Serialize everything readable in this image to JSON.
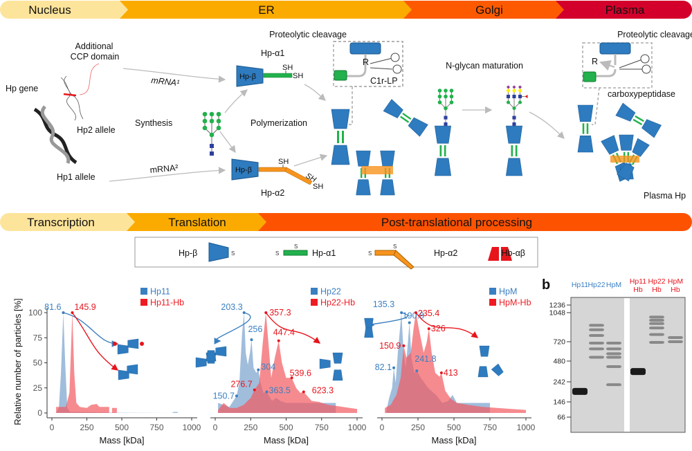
{
  "top_stages": [
    {
      "label": "Nucleus",
      "color": "#fde49b"
    },
    {
      "label": "ER",
      "color": "#fbab00"
    },
    {
      "label": "Golgi",
      "color": "#fd5a00"
    },
    {
      "label": "Plasma",
      "color": "#d3002b"
    }
  ],
  "bottom_stages": [
    {
      "label": "Transcription",
      "color": "#fde49b"
    },
    {
      "label": "Translation",
      "color": "#fbab00"
    },
    {
      "label": "Post-translational processing",
      "color": "#fd5200"
    }
  ],
  "diagram": {
    "hp_gene": "Hp gene",
    "additional": "Additional",
    "ccp_domain": "CCP domain",
    "hp2_allele": "Hp2 allele",
    "hp1_allele": "Hp1 allele",
    "synthesis": "Synthesis",
    "mrna1": "mRNA¹",
    "mrna2": "mRNA²",
    "hp_alpha1": "Hp-α1",
    "hp_alpha2": "Hp-α2",
    "hp_beta": "Hp-β",
    "sh": "SH",
    "polymerization": "Polymerization",
    "proteolytic_cleavage": "Proteolytic cleavage",
    "r": "R",
    "c1r_lp": "C1r-LP",
    "n_glycan_maturation": "N-glycan maturation",
    "carboxypeptidase": "carboxypeptidase",
    "plasma_hp": "Plasma Hp"
  },
  "legend": {
    "items": [
      "Hp-β",
      "Hp-α1",
      "Hp-α2",
      "Hb-αβ"
    ],
    "s": "S"
  },
  "colors": {
    "hp_beta": "#2e7bbf",
    "hp_alpha1": "#22b14c",
    "hp_alpha2": "#f7941d",
    "hb": "#e8141c",
    "blue_series": "#6b9bc8",
    "red_series": "#f2555b"
  },
  "chart_data": [
    {
      "type": "area",
      "ylabel": "Relative number of particles [%]",
      "xlabel": "Mass [kDa]",
      "xlim": [
        0,
        1000
      ],
      "ylim": [
        0,
        100
      ],
      "xticks": [
        "0",
        "250",
        "500",
        "750",
        "1000"
      ],
      "yticks": [
        "0",
        "25",
        "50",
        "75",
        "100"
      ],
      "legend_placement": "top-right",
      "series": [
        {
          "name": "Hp11",
          "color": "#3a7fc1",
          "x": [
            30,
            50,
            65,
            81.6,
            95,
            110,
            130,
            470,
            860,
            870,
            900,
            900
          ],
          "y": [
            0,
            5,
            40,
            100,
            50,
            5,
            1,
            0.3,
            0,
            1,
            1,
            0
          ]
        },
        {
          "name": "Hp11-Hb",
          "color": "#f01b22",
          "x": [
            30,
            100,
            125,
            145.9,
            160,
            175,
            200,
            250,
            280,
            320,
            340,
            410,
            410,
            430,
            430,
            465,
            465
          ],
          "y": [
            6,
            6,
            20,
            100,
            40,
            10,
            6,
            5,
            8,
            9,
            6,
            6,
            0,
            0,
            5,
            5,
            0
          ]
        }
      ],
      "annotations": [
        {
          "x": 81.6,
          "y": 100,
          "label": "81.6",
          "series": 0
        },
        {
          "x": 145.9,
          "y": 100,
          "label": "145.9",
          "series": 1
        }
      ]
    },
    {
      "type": "area",
      "xlabel": "Mass [kDa]",
      "xlim": [
        0,
        1000
      ],
      "ylim": [
        0,
        100
      ],
      "xticks": [
        "0",
        "250",
        "500",
        "750",
        "1000"
      ],
      "legend_placement": "top-right",
      "series": [
        {
          "name": "Hp22",
          "color": "#3a7fc1",
          "x": [
            20,
            60,
            100,
            150.7,
            170,
            190,
            203.3,
            215,
            230,
            245,
            256,
            270,
            290,
            304,
            320,
            340,
            363.5,
            400,
            430,
            460,
            500,
            850,
            850
          ],
          "y": [
            10,
            8,
            6,
            17,
            30,
            80,
            100,
            60,
            48,
            60,
            73,
            45,
            40,
            43,
            30,
            20,
            21,
            12,
            15,
            12,
            10,
            10,
            0
          ]
        },
        {
          "name": "Hp22-Hb",
          "color": "#f01b22",
          "x": [
            20,
            60,
            100,
            150,
            200,
            250,
            276.7,
            310,
            335,
            357.3,
            375,
            395,
            420,
            447.4,
            470,
            500,
            539.6,
            570,
            600,
            623.3,
            680,
            730,
            800,
            900,
            1000,
            1000
          ],
          "y": [
            3,
            10,
            5,
            5,
            8,
            15,
            23,
            30,
            70,
            100,
            70,
            35,
            55,
            72,
            50,
            35,
            35,
            25,
            20,
            21,
            12,
            11,
            8,
            6,
            4,
            0
          ]
        }
      ],
      "annotations": [
        {
          "x": 203.3,
          "y": 100,
          "label": "203.3",
          "series": 0
        },
        {
          "x": 256,
          "y": 73,
          "label": "256",
          "series": 0
        },
        {
          "x": 304,
          "y": 43,
          "label": "304",
          "series": 0
        },
        {
          "x": 150.7,
          "y": 17,
          "label": "150.7",
          "series": 0
        },
        {
          "x": 363.5,
          "y": 21,
          "label": "363.5",
          "series": 0
        },
        {
          "x": 357.3,
          "y": 100,
          "label": "357.3",
          "series": 1
        },
        {
          "x": 447.4,
          "y": 72,
          "label": "447.4",
          "series": 1
        },
        {
          "x": 539.6,
          "y": 35,
          "label": "539.6",
          "series": 1
        },
        {
          "x": 276.7,
          "y": 23,
          "label": "276.7",
          "series": 1
        },
        {
          "x": 623.3,
          "y": 21,
          "label": "623.3",
          "series": 1
        }
      ]
    },
    {
      "type": "area",
      "xlabel": "Mass [kDa]",
      "xlim": [
        0,
        1000
      ],
      "ylim": [
        0,
        100
      ],
      "xticks": [
        "0",
        "250",
        "500",
        "750",
        "1000"
      ],
      "legend_placement": "top-right",
      "series": [
        {
          "name": "HpM",
          "color": "#3a7fc1",
          "x": [
            30,
            50,
            70,
            82.1,
            95,
            110,
            135.3,
            150,
            165,
            180,
            190.8,
            205,
            225,
            241.8,
            270,
            320,
            375,
            420,
            460,
            490,
            520,
            560,
            750,
            750
          ],
          "y": [
            2,
            15,
            25,
            45,
            30,
            60,
            100,
            60,
            45,
            70,
            90,
            55,
            40,
            42,
            35,
            25,
            18,
            10,
            12,
            18,
            10,
            10,
            10,
            0
          ]
        },
        {
          "name": "HpM-Hb",
          "color": "#f01b22",
          "x": [
            20,
            60,
            100,
            130,
            150.9,
            170,
            200,
            220,
            235.4,
            255,
            290,
            310,
            326,
            345,
            370,
            400,
            413,
            440,
            480,
            520,
            600,
            700,
            800,
            900,
            1000,
            1000
          ],
          "y": [
            5,
            8,
            18,
            35,
            67,
            55,
            60,
            85,
            100,
            85,
            60,
            70,
            84,
            60,
            40,
            36,
            40,
            22,
            14,
            10,
            8,
            6,
            5,
            4,
            3,
            0
          ]
        }
      ],
      "annotations": [
        {
          "x": 135.3,
          "y": 100,
          "label": "135.3",
          "series": 0
        },
        {
          "x": 190.8,
          "y": 90,
          "label": "190.8",
          "series": 0
        },
        {
          "x": 82.1,
          "y": 45,
          "label": "82.1",
          "series": 0
        },
        {
          "x": 241.8,
          "y": 42,
          "label": "241.8",
          "series": 0
        },
        {
          "x": 235.4,
          "y": 100,
          "label": "235.4",
          "series": 1
        },
        {
          "x": 326,
          "y": 84,
          "label": "326",
          "series": 1
        },
        {
          "x": 150.9,
          "y": 67,
          "label": "150.9",
          "series": 1
        },
        {
          "x": 413,
          "y": 40,
          "label": "413",
          "series": 1
        }
      ]
    }
  ],
  "gel": {
    "panel_label": "b",
    "markers": [
      1236,
      1048,
      720,
      480,
      242,
      146,
      66
    ],
    "marker_labels": [
      "1236",
      "1048",
      "720",
      "480",
      "242",
      "146",
      "66"
    ],
    "lanes": [
      {
        "label": [
          "Hp11"
        ],
        "color": "#3a7fc1",
        "bands_kda": [
          190
        ]
      },
      {
        "label": [
          "Hp22"
        ],
        "color": "#3a7fc1",
        "bands_kda": [
          520,
          620,
          700,
          780,
          840,
          890
        ]
      },
      {
        "label": [
          "HpM"
        ],
        "color": "#3a7fc1",
        "bands_kda": [
          225,
          400,
          520,
          560,
          620,
          700
        ]
      },
      {
        "label": [
          "Hp11",
          "Hb"
        ],
        "color": "#e8141c",
        "bands_kda": [
          340
        ]
      },
      {
        "label": [
          "Hp22",
          "Hb"
        ],
        "color": "#e8141c",
        "bands_kda": [
          710,
          790,
          860,
          910,
          950,
          990
        ]
      },
      {
        "label": [
          "HpM",
          "Hb"
        ],
        "color": "#e8141c",
        "bands_kda": [
          720,
          760
        ]
      }
    ]
  }
}
